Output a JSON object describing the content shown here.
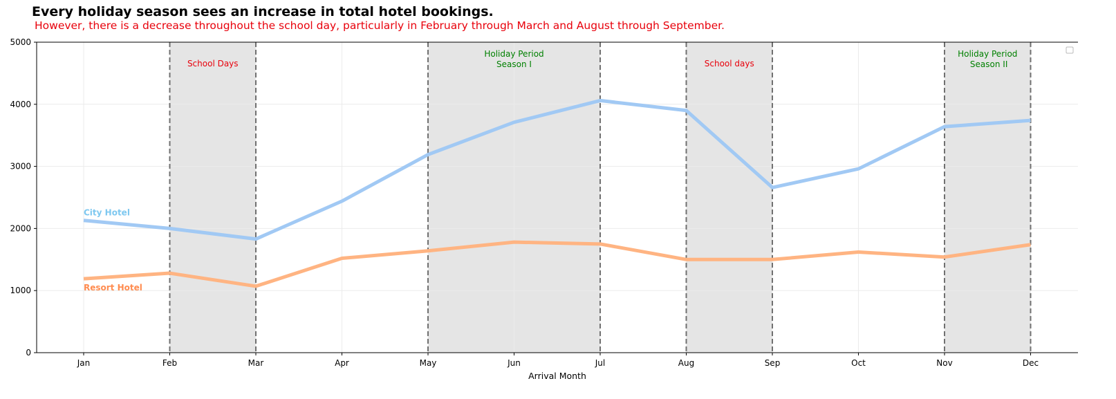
{
  "chart_data": {
    "type": "line",
    "title": "Every holiday season sees an increase in total hotel bookings.",
    "subtitle": "However, there is a decrease throughout the school day, particularly in February through March and August through September.",
    "xlabel": "Arrival Month",
    "ylabel": "",
    "categories": [
      "Jan",
      "Feb",
      "Mar",
      "Apr",
      "May",
      "Jun",
      "Jul",
      "Aug",
      "Sep",
      "Oct",
      "Nov",
      "Dec"
    ],
    "ylim": [
      0,
      5000
    ],
    "yticks": [
      0,
      1000,
      2000,
      3000,
      4000,
      5000
    ],
    "grid": true,
    "legend": "top-right (empty)",
    "series": [
      {
        "name": "City Hotel",
        "color": "#a1c9f4",
        "label_color": "#7ec8f0",
        "values": [
          2130,
          2000,
          1830,
          2440,
          3190,
          3710,
          4060,
          3900,
          2660,
          2960,
          3640,
          3740
        ]
      },
      {
        "name": "Resort Hotel",
        "color": "#ffb482",
        "label_color": "#ff8c50",
        "values": [
          1190,
          1280,
          1070,
          1520,
          1640,
          1780,
          1750,
          1500,
          1500,
          1620,
          1540,
          1740
        ]
      }
    ],
    "shaded_regions": [
      {
        "from": "Feb",
        "to": "Mar",
        "label": "School Days",
        "label_color": "#e8000b"
      },
      {
        "from": "May",
        "to": "Jul",
        "label": "Holiday Period\nSeason I",
        "label_color": "#008000"
      },
      {
        "from": "Aug",
        "to": "Sep",
        "label": "School days",
        "label_color": "#e8000b"
      },
      {
        "from": "Nov",
        "to": "Dec",
        "label": "Holiday Period\n Season II",
        "label_color": "#008000"
      }
    ],
    "colors": {
      "title": "#000000",
      "subtitle": "#e8000b",
      "shade": "#e5e5e5",
      "boundary": "#707070"
    }
  }
}
